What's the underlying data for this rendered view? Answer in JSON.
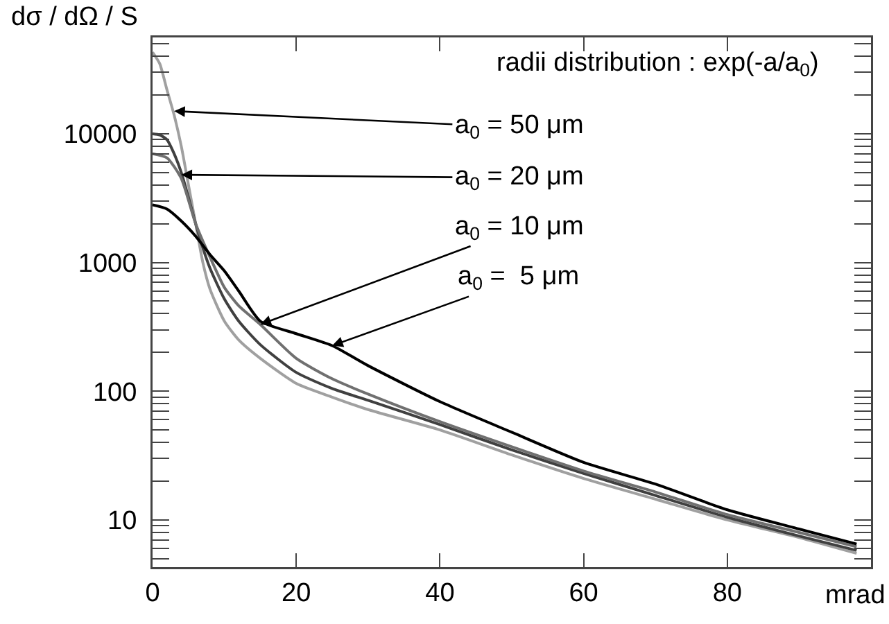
{
  "chart_data": {
    "type": "line",
    "ylabel": "dσ / dΩ / S",
    "xlabel": "mrad",
    "log": "y",
    "grid": false,
    "xlim": [
      0,
      100
    ],
    "xticks": [
      0,
      20,
      40,
      60,
      80
    ],
    "ylim": [
      4.3,
      56000
    ],
    "yticks": [
      {
        "value": 5,
        "label": null
      },
      {
        "value": 6,
        "label": null
      },
      {
        "value": 7,
        "label": null
      },
      {
        "value": 8,
        "label": null
      },
      {
        "value": 9,
        "label": null
      },
      10,
      {
        "value": 20,
        "label": null
      },
      {
        "value": 30,
        "label": null
      },
      {
        "value": 40,
        "label": null
      },
      {
        "value": 50,
        "label": null
      },
      {
        "value": 60,
        "label": null
      },
      {
        "value": 70,
        "label": null
      },
      {
        "value": 80,
        "label": null
      },
      {
        "value": 90,
        "label": null
      },
      100,
      {
        "value": 200,
        "label": null
      },
      {
        "value": 300,
        "label": null
      },
      {
        "value": 400,
        "label": null
      },
      {
        "value": 500,
        "label": null
      },
      {
        "value": 600,
        "label": null
      },
      {
        "value": 700,
        "label": null
      },
      {
        "value": 800,
        "label": null
      },
      {
        "value": 900,
        "label": null
      },
      1000,
      {
        "value": 2000,
        "label": null
      },
      {
        "value": 3000,
        "label": null
      },
      {
        "value": 4000,
        "label": null
      },
      {
        "value": 5000,
        "label": null
      },
      {
        "value": 6000,
        "label": null
      },
      {
        "value": 7000,
        "label": null
      },
      {
        "value": 8000,
        "label": null
      },
      {
        "value": 9000,
        "label": null
      },
      10000,
      {
        "value": 20000,
        "label": null
      },
      {
        "value": 30000,
        "label": null
      },
      {
        "value": 40000,
        "label": null
      },
      {
        "value": 50000,
        "label": null
      }
    ],
    "line_style": "solid",
    "series": [
      {
        "color": "#a0a0a0",
        "x": [
          0,
          1,
          2,
          3,
          4,
          5,
          6,
          7,
          8,
          10,
          12,
          15,
          20,
          25,
          30,
          40,
          50,
          60,
          70,
          80,
          90,
          98
        ],
        "values": [
          43000,
          35000,
          22000,
          14000,
          8000,
          4000,
          2000,
          1000,
          620,
          350,
          250,
          180,
          115,
          90,
          72,
          50,
          32,
          21,
          14.5,
          10,
          7.3,
          5.5
        ]
      },
      {
        "color": "#404040",
        "x": [
          0,
          1,
          2,
          3,
          4,
          5,
          6,
          7,
          8,
          10,
          12,
          15,
          20,
          25,
          30,
          40,
          50,
          60,
          70,
          80,
          90,
          98
        ],
        "values": [
          10000,
          9800,
          9000,
          7000,
          5000,
          3200,
          2000,
          1300,
          900,
          520,
          350,
          230,
          140,
          105,
          85,
          55,
          35,
          23,
          15.5,
          10.5,
          7.5,
          5.8
        ]
      },
      {
        "color": "#707070",
        "x": [
          0,
          2,
          4,
          6,
          8,
          10,
          12,
          15,
          20,
          25,
          30,
          40,
          50,
          60,
          70,
          80,
          90,
          98
        ],
        "values": [
          7000,
          6500,
          4500,
          2000,
          1100,
          640,
          460,
          330,
          180,
          125,
          95,
          58,
          37,
          24,
          16.5,
          11,
          8,
          6.2
        ]
      },
      {
        "color": "#000000",
        "x": [
          0,
          2,
          4,
          6,
          8,
          10,
          12,
          15,
          20,
          25,
          30,
          40,
          50,
          60,
          70,
          80,
          90,
          98
        ],
        "values": [
          2800,
          2600,
          2100,
          1600,
          1150,
          860,
          600,
          350,
          280,
          226,
          158,
          83,
          48,
          28,
          19,
          12,
          8.5,
          6.5
        ]
      }
    ],
    "annotations": [
      "radii distribution : exp(-a/a$_{0}$)",
      {
        "text": "a$_{0}$ = 50 μm",
        "x": 3,
        "y": 15000
      },
      {
        "text": "a$_{0}$ = 20 μm",
        "x": 4,
        "y": 4800
      },
      {
        "text": "a$_{0}$ = 10 μm",
        "x": 15,
        "y": 330
      },
      {
        "text": "a$_{0}$ =  5 μm",
        "x": 25,
        "y": 226
      }
    ]
  }
}
